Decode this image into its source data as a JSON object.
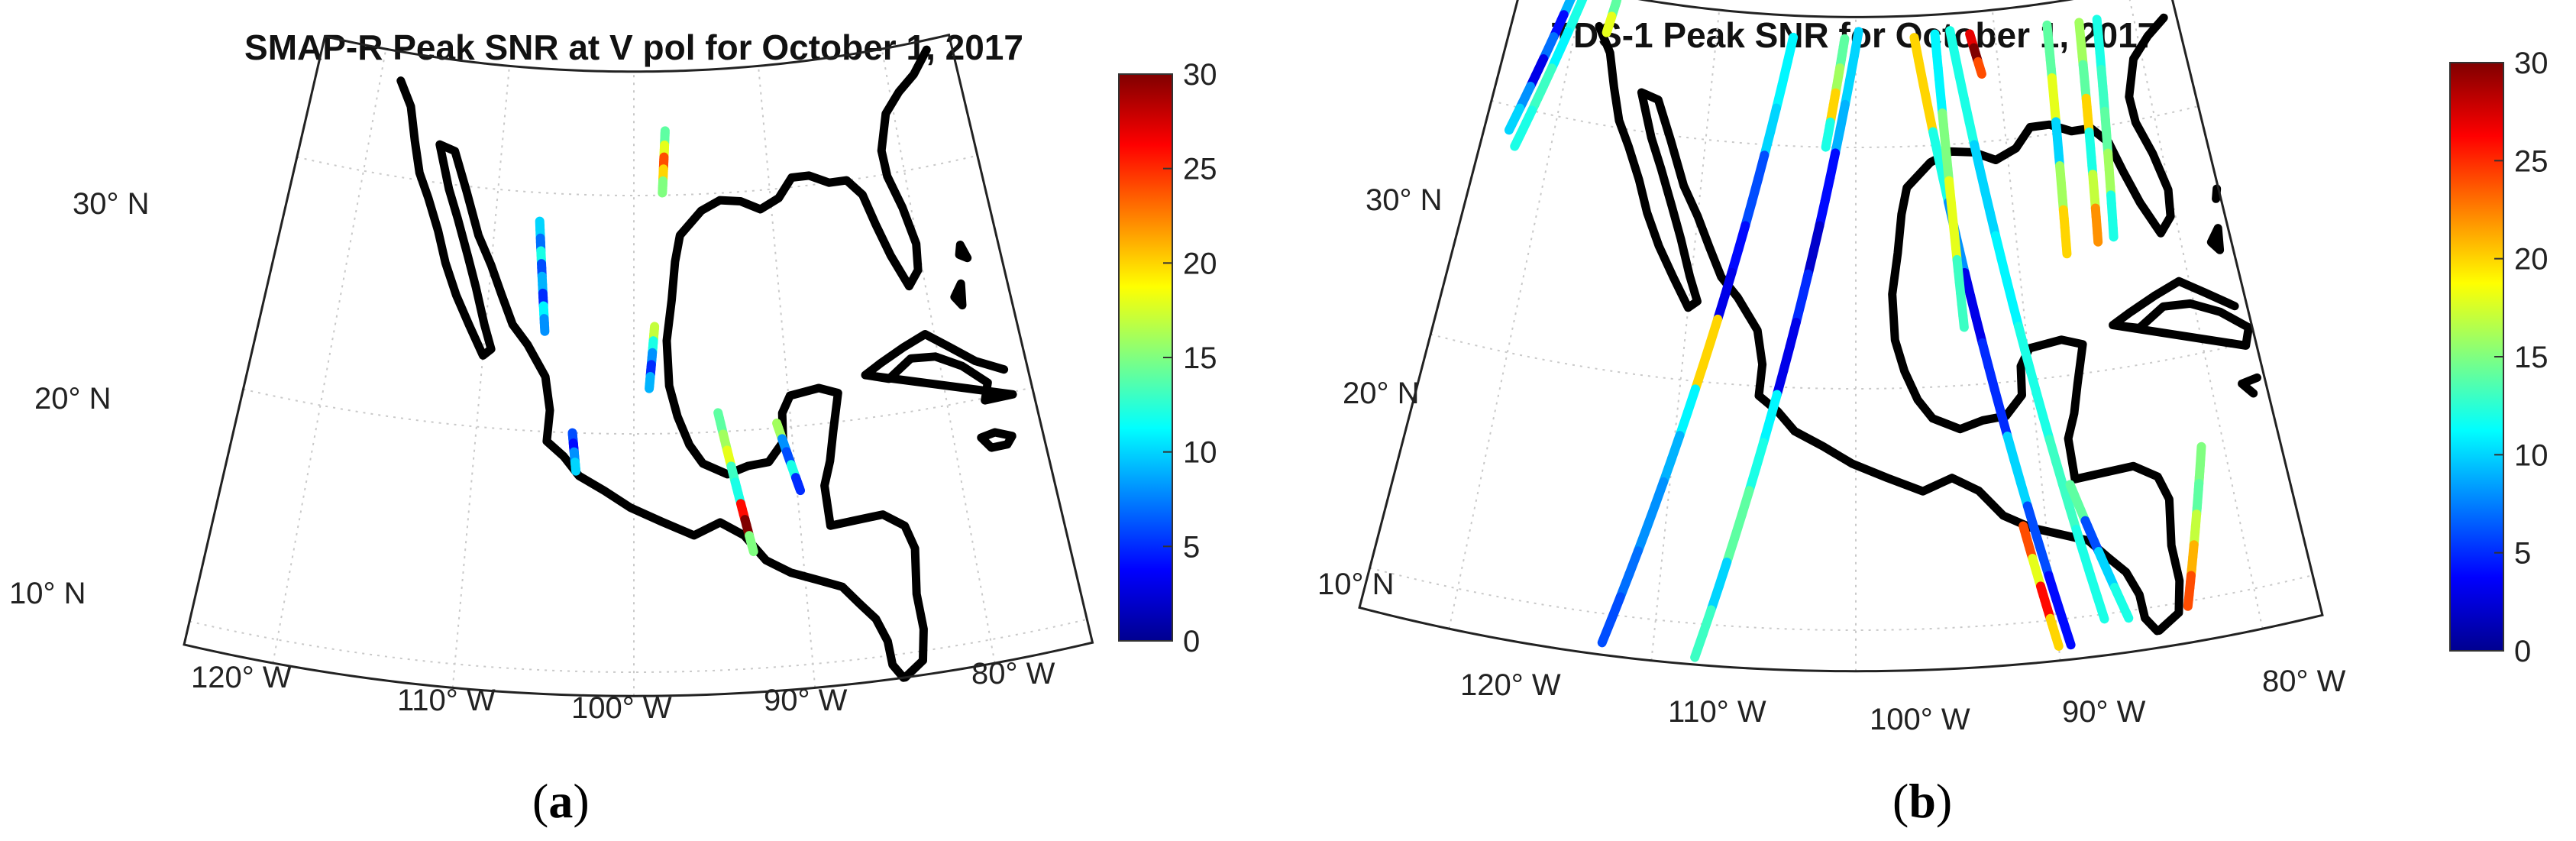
{
  "panels": [
    {
      "id": "a",
      "title": "SMAP-R Peak SNR at V pol for October 1, 2017",
      "caption_open": "(",
      "caption_letter": "a",
      "caption_close": ")",
      "lat_labels": [
        "30° N",
        "20° N",
        "10° N"
      ],
      "lon_labels": [
        "120° W",
        "110° W",
        "100° W",
        "90° W",
        "80° W"
      ],
      "colorbar": {
        "min": 0,
        "max": 30,
        "ticks": [
          "30",
          "25",
          "20",
          "15",
          "10",
          "5",
          "0"
        ]
      },
      "tracks": [
        {
          "from": [
            -106.8,
            28.8
          ],
          "to": [
            -106.0,
            24.2
          ],
          "snr": [
            10,
            7,
            12,
            6,
            9,
            5,
            11,
            8
          ]
        },
        {
          "from": [
            -103.9,
            20.0
          ],
          "to": [
            -103.6,
            18.4
          ],
          "snr": [
            6,
            4,
            8,
            10
          ]
        },
        {
          "from": [
            -97.6,
            32.7
          ],
          "to": [
            -97.9,
            30.1
          ],
          "snr": [
            14,
            18,
            24,
            20,
            15
          ]
        },
        {
          "from": [
            -98.6,
            24.5
          ],
          "to": [
            -99.0,
            21.9
          ],
          "snr": [
            17,
            12,
            8,
            5,
            9
          ]
        },
        {
          "from": [
            -94.6,
            20.8
          ],
          "to": [
            -92.9,
            14.9
          ],
          "snr": [
            14,
            16,
            18,
            13,
            12,
            26,
            30,
            15
          ]
        },
        {
          "from": [
            -90.9,
            20.2
          ],
          "to": [
            -89.8,
            17.3
          ],
          "snr": [
            16,
            8,
            6,
            12,
            5
          ]
        }
      ]
    },
    {
      "id": "b",
      "title": "TDS-1 Peak SNR for October 1, 2017",
      "caption_open": "(",
      "caption_letter": "b",
      "caption_close": ")",
      "lat_labels": [
        "30° N",
        "20° N",
        "10° N"
      ],
      "lon_labels": [
        "120° W",
        "110° W",
        "100° W",
        "90° W",
        "80° W"
      ],
      "colorbar": {
        "min": 0,
        "max": 30,
        "ticks": [
          "30",
          "25",
          "20",
          "15",
          "10",
          "5",
          "0"
        ]
      },
      "tracks": [
        {
          "from": [
            -120.6,
            35.4
          ],
          "to": [
            -122.9,
            29.0
          ],
          "snr": [
            9,
            4,
            7,
            3,
            8,
            10
          ]
        },
        {
          "from": [
            -119.8,
            35.4
          ],
          "to": [
            -122.3,
            28.4
          ],
          "snr": [
            12,
            11,
            13,
            12
          ]
        },
        {
          "from": [
            -117.5,
            35.2
          ],
          "to": [
            -117.8,
            33.8
          ],
          "snr": [
            14,
            18
          ]
        },
        {
          "from": [
            -104.5,
            34.5
          ],
          "to": [
            -112.5,
            8.8
          ],
          "snr": [
            11,
            10,
            6,
            4,
            3,
            20,
            11,
            9,
            8,
            7,
            6
          ]
        },
        {
          "from": [
            -99.8,
            34.8
          ],
          "to": [
            -107.9,
            8.6
          ],
          "snr": [
            10,
            9,
            4,
            2,
            5,
            3,
            11,
            12,
            14,
            10,
            13
          ]
        },
        {
          "from": [
            -100.8,
            34.5
          ],
          "to": [
            -102.0,
            30.0
          ],
          "snr": [
            14,
            16,
            20,
            12
          ]
        },
        {
          "from": [
            -95.8,
            34.5
          ],
          "to": [
            -89.4,
            8.9
          ],
          "snr": [
            20,
            12,
            8,
            3,
            5,
            10,
            6,
            4
          ]
        },
        {
          "from": [
            -94.3,
            34.6
          ],
          "to": [
            -93.6,
            22.4
          ],
          "snr": [
            11,
            15,
            18,
            13
          ]
        },
        {
          "from": [
            -93.2,
            34.7
          ],
          "to": [
            -87.6,
            9.8
          ],
          "snr": [
            12,
            10,
            11,
            12,
            13,
            12
          ]
        },
        {
          "from": [
            -91.8,
            34.5
          ],
          "to": [
            -91.2,
            32.8
          ],
          "snr": [
            27,
            30,
            24
          ]
        },
        {
          "from": [
            -88.5,
            15.5
          ],
          "to": [
            -86.4,
            9.7
          ],
          "snr": [
            14,
            6,
            10,
            12
          ]
        },
        {
          "from": [
            -91.2,
            14.0
          ],
          "to": [
            -90.0,
            8.9
          ],
          "snr": [
            24,
            18,
            26,
            20
          ]
        },
        {
          "from": [
            -86.2,
            34.5
          ],
          "to": [
            -87.0,
            25.0
          ],
          "snr": [
            14,
            18,
            10,
            16,
            20
          ]
        },
        {
          "from": [
            -83.9,
            34.4
          ],
          "to": [
            -85.0,
            25.3
          ],
          "snr": [
            16,
            14,
            20,
            12,
            17,
            22
          ]
        },
        {
          "from": [
            -82.6,
            34.4
          ],
          "to": [
            -84.0,
            25.4
          ],
          "snr": [
            12,
            13,
            14,
            16,
            12
          ]
        },
        {
          "from": [
            -81.2,
            16.2
          ],
          "to": [
            -83.4,
            9.8
          ],
          "snr": [
            15,
            14,
            17,
            21,
            24
          ]
        }
      ]
    }
  ],
  "colors": {
    "coast": "#000000",
    "grid": "#c9c9c9",
    "frame": "#222222",
    "colormap": [
      "#00008f",
      "#0000ff",
      "#0080ff",
      "#00ffff",
      "#80ff80",
      "#ffff00",
      "#ff8000",
      "#ff0000",
      "#800000"
    ]
  }
}
